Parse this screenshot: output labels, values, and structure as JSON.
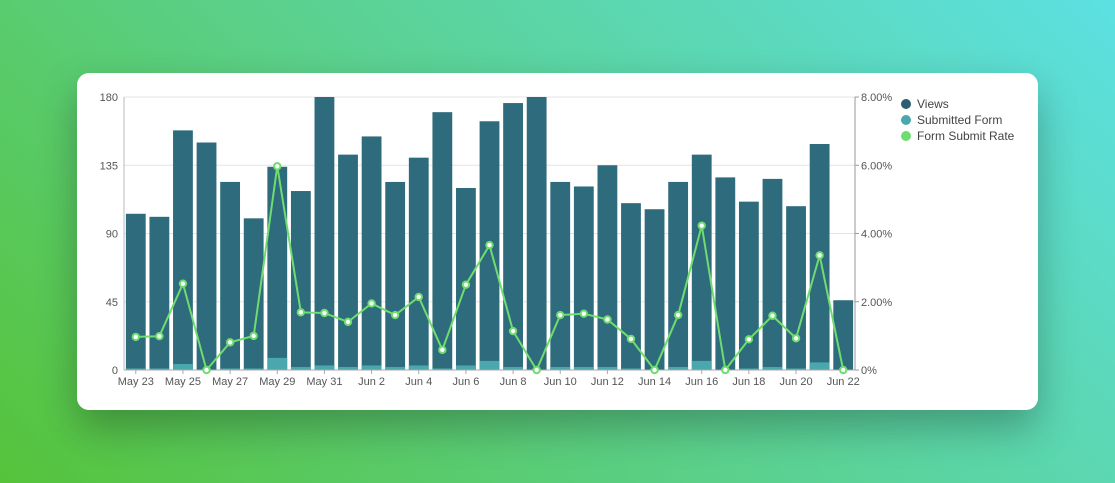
{
  "chart_data": {
    "type": "bar",
    "x": [
      "May 23",
      "May 24",
      "May 25",
      "May 26",
      "May 27",
      "May 28",
      "May 29",
      "May 30",
      "May 31",
      "Jun 1",
      "Jun 2",
      "Jun 3",
      "Jun 4",
      "Jun 5",
      "Jun 6",
      "Jun 7",
      "Jun 8",
      "Jun 9",
      "Jun 10",
      "Jun 11",
      "Jun 12",
      "Jun 13",
      "Jun 14",
      "Jun 15",
      "Jun 16",
      "Jun 17",
      "Jun 18",
      "Jun 19",
      "Jun 20",
      "Jun 21",
      "Jun 22"
    ],
    "x_tick_labels": [
      "May 23",
      "May 25",
      "May 27",
      "May 29",
      "May 31",
      "Jun 2",
      "Jun 4",
      "Jun 6",
      "Jun 8",
      "Jun 10",
      "Jun 12",
      "Jun 14",
      "Jun 16",
      "Jun 18",
      "Jun 20",
      "Jun 22"
    ],
    "series": [
      {
        "name": "Views",
        "kind": "bar",
        "axis": "left",
        "color": "#2e6b7c",
        "values": [
          103,
          101,
          158,
          150,
          124,
          100,
          134,
          118,
          180,
          142,
          154,
          124,
          140,
          170,
          120,
          164,
          176,
          180,
          124,
          121,
          135,
          110,
          106,
          124,
          142,
          127,
          111,
          126,
          108,
          149,
          46
        ]
      },
      {
        "name": "Submitted Form",
        "kind": "bar",
        "axis": "left",
        "color": "#4aa7ad",
        "values": [
          1,
          1,
          4,
          0,
          1,
          1,
          8,
          2,
          3,
          2,
          3,
          2,
          3,
          1,
          3,
          6,
          2,
          0,
          2,
          2,
          2,
          1,
          0,
          2,
          6,
          0,
          1,
          2,
          1,
          5,
          0
        ]
      },
      {
        "name": "Form Submit Rate",
        "kind": "line",
        "axis": "right",
        "color": "#6fdc6f",
        "values": [
          0.97,
          0.99,
          2.53,
          0,
          0.81,
          1.0,
          5.97,
          1.69,
          1.67,
          1.41,
          1.95,
          1.61,
          2.14,
          0.59,
          2.5,
          3.66,
          1.14,
          0,
          1.61,
          1.65,
          1.48,
          0.91,
          0,
          1.61,
          4.23,
          0,
          0.9,
          1.59,
          0.93,
          3.36,
          0
        ]
      }
    ],
    "y_left": {
      "ticks": [
        "0",
        "45",
        "90",
        "135",
        "180"
      ],
      "min": 0,
      "max": 180
    },
    "y_right": {
      "ticks": [
        "0%",
        "2.00%",
        "4.00%",
        "6.00%",
        "8.00%"
      ],
      "min": 0,
      "max": 8
    },
    "legend_position": "top-right",
    "grid": true
  }
}
